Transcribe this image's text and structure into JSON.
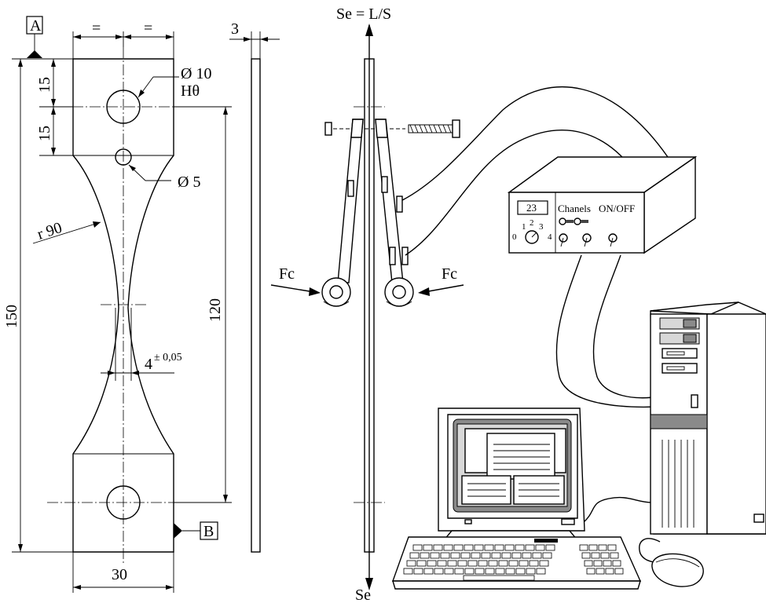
{
  "specimen": {
    "datum_a": "A",
    "datum_b": "B",
    "equal_left": "=",
    "equal_right": "=",
    "thickness": "3",
    "dim_top": "15",
    "dim_second": "15",
    "dim_total_length": "150",
    "dim_gauge_length": "120",
    "dim_width": "30",
    "hole_large_dia": "Ø 10",
    "hole_large_tol": "Hθ",
    "hole_small_dia": "Ø 5",
    "radius": "r 90",
    "neck_width": "4",
    "neck_tol": "± 0,05"
  },
  "loading": {
    "top_label": "Se = L/S",
    "bottom_label": "Se",
    "force_left": "Fc",
    "force_right": "Fc"
  },
  "amplifier": {
    "display_value": "23",
    "channels_label": "Chanels",
    "onoff_label": "ON/OFF",
    "dial_1": "1",
    "dial_2": "2",
    "dial_3": "3",
    "dial_0": "0",
    "dial_4": "4"
  }
}
